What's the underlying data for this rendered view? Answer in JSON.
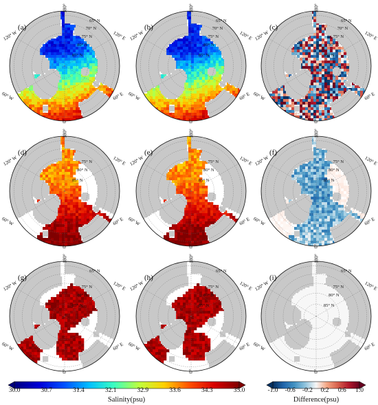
{
  "panels": [
    {
      "id": "a",
      "label": "(a)",
      "variable": "salinity",
      "mask": 0.0
    },
    {
      "id": "b",
      "label": "(b)",
      "variable": "salinity",
      "mask": 0.0
    },
    {
      "id": "c",
      "label": "(c)",
      "variable": "difference",
      "mask": 0.0
    },
    {
      "id": "d",
      "label": "(d)",
      "variable": "salinity",
      "mask": 0.25
    },
    {
      "id": "e",
      "label": "(e)",
      "variable": "salinity",
      "mask": 0.25
    },
    {
      "id": "f",
      "label": "(f)",
      "variable": "difference",
      "mask": 0.25
    },
    {
      "id": "g",
      "label": "(g)",
      "variable": "salinity",
      "mask": 0.5
    },
    {
      "id": "h",
      "label": "(h)",
      "variable": "salinity",
      "mask": 0.5
    },
    {
      "id": "i",
      "label": "(i)",
      "variable": "difference",
      "mask": 0.5
    }
  ],
  "rows": [
    {
      "lat_labels": [
        "65° N",
        "70° N",
        "75° N",
        "80° N",
        "85° N"
      ]
    },
    {
      "lat_labels": [
        "75° N",
        "80° N",
        "85° N"
      ]
    },
    {
      "lat_labels": [
        "65° N",
        "75° N",
        "80° N",
        "85° N"
      ]
    }
  ],
  "lon_labels": {
    "top": "180° ",
    "bottom": "0°",
    "upper_left": "120° W",
    "upper_right": "120° E",
    "lower_left": "60° W",
    "lower_right": "60° E"
  },
  "salinity_colorbar": {
    "ticks": [
      "30.0",
      "30.7",
      "31.4",
      "32.1",
      "32.9",
      "33.6",
      "34.3",
      "35.0"
    ],
    "title": "Salinity(psu)",
    "min": 30.0,
    "max": 35.0,
    "colors": [
      "#00007f",
      "#0000d8",
      "#0050ff",
      "#00c0ff",
      "#3cffc0",
      "#c0ff3c",
      "#ffd000",
      "#ff5000",
      "#d80000",
      "#800000"
    ]
  },
  "difference_colorbar": {
    "ticks": [
      "-1.0",
      "-0.6",
      "-0.2",
      "0.2",
      "0.6",
      "1.0"
    ],
    "title": "Difference(psu)",
    "min": -1.0,
    "max": 1.0,
    "colors": [
      "#053061",
      "#2166ac",
      "#4393c3",
      "#92c5de",
      "#f7f7f7",
      "#f4a582",
      "#d6604d",
      "#b2182b",
      "#67001f"
    ]
  },
  "colors": {
    "land": "#c8c8c8",
    "ocean_empty": "#ffffff",
    "grid": "#666666",
    "coast": "#222222"
  }
}
